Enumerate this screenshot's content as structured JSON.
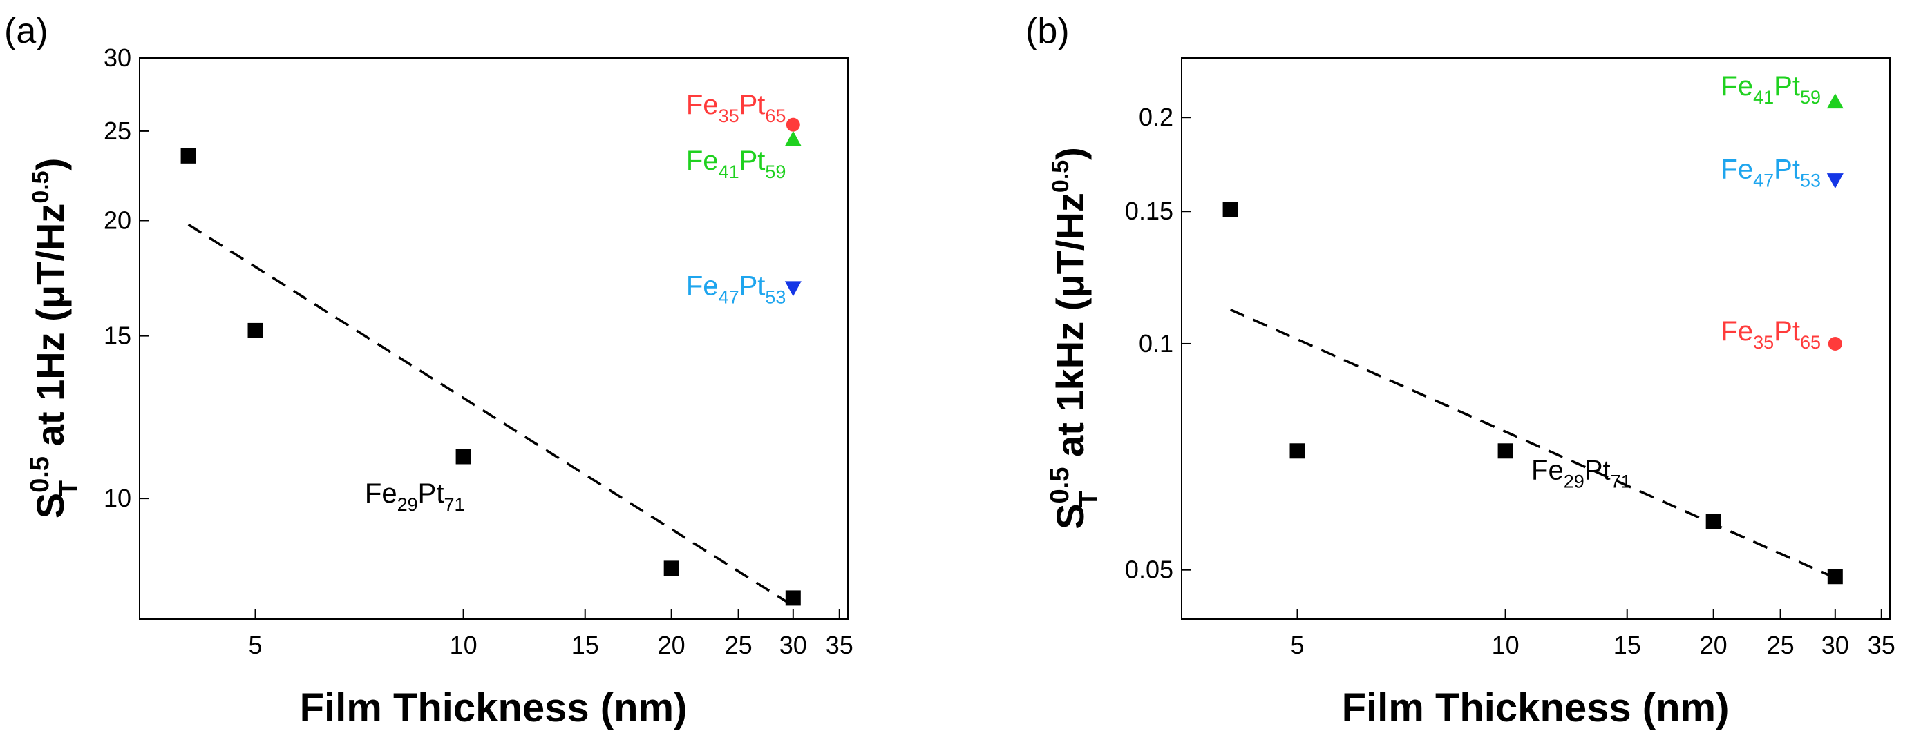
{
  "chart_data": [
    {
      "type": "scatter",
      "panel_label": "(a)",
      "xlabel": "Film Thickness (nm)",
      "ylabel_parts": {
        "main": "S",
        "sup": "0.5",
        "sub": "T",
        "rest1": " at 1Hz (μT/Hz",
        "sup2": "0.5",
        "rest2": ")"
      },
      "xscale": "log",
      "yscale": "log",
      "xlim": [
        3.4,
        36
      ],
      "ylim": [
        7.4,
        30
      ],
      "xticks": [
        5,
        10,
        15,
        20,
        25,
        30,
        35
      ],
      "xtick_labels": [
        "5",
        "10",
        "15",
        "20",
        "25",
        "30",
        "35"
      ],
      "yticks": [
        10,
        15,
        20,
        25,
        30
      ],
      "ytick_labels": [
        "10",
        "15",
        "20",
        "25",
        "30"
      ],
      "series": [
        {
          "name": "Fe29Pt71",
          "marker": "square",
          "color": "#000000",
          "x": [
            4,
            5,
            10,
            20,
            30
          ],
          "y": [
            23.5,
            15.2,
            11.1,
            8.4,
            7.8
          ]
        },
        {
          "name": "Fe35Pt65",
          "marker": "circle",
          "color": "#ff3b3b",
          "x": [
            30
          ],
          "y": [
            25.4
          ]
        },
        {
          "name": "Fe41Pt59",
          "marker": "triangle-up",
          "color": "#1fd11f",
          "x": [
            30
          ],
          "y": [
            24.5
          ]
        },
        {
          "name": "Fe47Pt53",
          "marker": "triangle-down",
          "color": "#1436e6",
          "x": [
            30
          ],
          "y": [
            16.9
          ]
        }
      ],
      "fit": {
        "style": "dashed",
        "color": "#000000",
        "x": [
          4,
          30
        ],
        "y": [
          19.8,
          7.65
        ]
      },
      "annotations": [
        {
          "base1": "Fe",
          "sub1": "35",
          "base2": "Pt",
          "sub2": "65",
          "color": "#ff3b3b",
          "x": 21,
          "y": 26.1
        },
        {
          "base1": "Fe",
          "sub1": "41",
          "base2": "Pt",
          "sub2": "59",
          "color": "#1fd11f",
          "x": 21,
          "y": 22.7
        },
        {
          "base1": "Fe",
          "sub1": "47",
          "base2": "Pt",
          "sub2": "53",
          "color": "#1ea5ee",
          "x": 21,
          "y": 16.6
        },
        {
          "base1": "Fe",
          "sub1": "29",
          "base2": "Pt",
          "sub2": "71",
          "color": "#000000",
          "x": 7.2,
          "y": 9.9
        }
      ]
    },
    {
      "type": "scatter",
      "panel_label": "(b)",
      "xlabel": "Film Thickness (nm)",
      "ylabel_parts": {
        "main": "S",
        "sup": "0.5",
        "sub": "T",
        "rest1": " at 1kHz (μT/Hz",
        "sup2": "0.5",
        "rest2": ")"
      },
      "xscale": "log",
      "yscale": "log",
      "xlim": [
        3.4,
        36
      ],
      "ylim": [
        0.043,
        0.24
      ],
      "xticks": [
        5,
        10,
        15,
        20,
        25,
        30,
        35
      ],
      "xtick_labels": [
        "5",
        "10",
        "15",
        "20",
        "25",
        "30",
        "35"
      ],
      "yticks": [
        0.05,
        0.1,
        0.15,
        0.2
      ],
      "ytick_labels": [
        "0.05",
        "0.1",
        "0.15",
        "0.2"
      ],
      "series": [
        {
          "name": "Fe29Pt71",
          "marker": "square",
          "color": "#000000",
          "x": [
            4,
            5,
            10,
            20,
            30
          ],
          "y": [
            0.151,
            0.072,
            0.072,
            0.058,
            0.049
          ]
        },
        {
          "name": "Fe41Pt59",
          "marker": "triangle-up",
          "color": "#1fd11f",
          "x": [
            30
          ],
          "y": [
            0.21
          ]
        },
        {
          "name": "Fe47Pt53",
          "marker": "triangle-down",
          "color": "#1436e6",
          "x": [
            30
          ],
          "y": [
            0.165
          ]
        },
        {
          "name": "Fe35Pt65",
          "marker": "circle",
          "color": "#ff3b3b",
          "x": [
            30
          ],
          "y": [
            0.1
          ]
        }
      ],
      "fit": {
        "style": "dashed",
        "color": "#000000",
        "x": [
          4,
          30
        ],
        "y": [
          0.111,
          0.0488
        ]
      },
      "annotations": [
        {
          "base1": "Fe",
          "sub1": "41",
          "base2": "Pt",
          "sub2": "59",
          "color": "#1fd11f",
          "x": 20.5,
          "y": 0.214
        },
        {
          "base1": "Fe",
          "sub1": "47",
          "base2": "Pt",
          "sub2": "53",
          "color": "#1ea5ee",
          "x": 20.5,
          "y": 0.166
        },
        {
          "base1": "Fe",
          "sub1": "35",
          "base2": "Pt",
          "sub2": "65",
          "color": "#ff3b3b",
          "x": 20.5,
          "y": 0.101
        },
        {
          "base1": "Fe",
          "sub1": "29",
          "base2": "Pt",
          "sub2": "71",
          "color": "#000000",
          "x": 10.9,
          "y": 0.066
        }
      ]
    }
  ]
}
